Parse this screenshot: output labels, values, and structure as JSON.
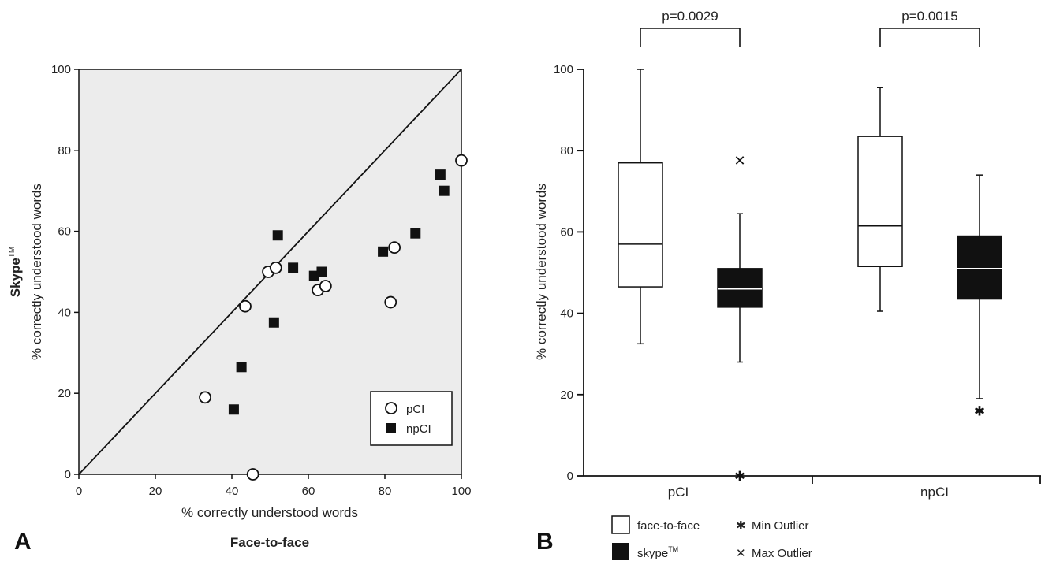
{
  "chart_data": [
    {
      "panel": "A",
      "type": "scatter",
      "xlabel": "% correctly understood words",
      "xlabel_bold": "Face-to-face",
      "ylabel": "% correctly understood words",
      "ylabel_bold": "Skype",
      "ylabel_bold_sup": "TM",
      "xlim": [
        0,
        100
      ],
      "ylim": [
        0,
        100
      ],
      "xticks": [
        "0",
        "20",
        "40",
        "60",
        "80",
        "100"
      ],
      "yticks": [
        "0",
        "20",
        "40",
        "60",
        "80",
        "100"
      ],
      "identity_line": true,
      "legend_position": "bottom-right",
      "series": [
        {
          "name": "pCI",
          "marker": "open-circle",
          "points": [
            [
              33,
              19
            ],
            [
              43.5,
              41.5
            ],
            [
              45.5,
              0
            ],
            [
              49.5,
              50
            ],
            [
              51.5,
              51
            ],
            [
              62.5,
              45.5
            ],
            [
              64.5,
              46.5
            ],
            [
              81.5,
              42.5
            ],
            [
              82.5,
              56
            ],
            [
              100,
              77.5
            ]
          ]
        },
        {
          "name": "npCI",
          "marker": "filled-square",
          "points": [
            [
              40.5,
              16
            ],
            [
              42.5,
              26.5
            ],
            [
              51,
              37.5
            ],
            [
              52,
              59
            ],
            [
              56,
              51
            ],
            [
              61.5,
              49
            ],
            [
              63.5,
              50
            ],
            [
              79.5,
              55
            ],
            [
              88,
              59.5
            ],
            [
              94.5,
              74
            ],
            [
              95.5,
              70
            ]
          ]
        }
      ]
    },
    {
      "panel": "B",
      "type": "box",
      "ylabel": "% correctly understood words",
      "ylim": [
        0,
        100
      ],
      "yticks": [
        "0",
        "20",
        "40",
        "60",
        "80",
        "100"
      ],
      "categories": [
        "pCI",
        "npCI"
      ],
      "series": [
        {
          "name": "face-to-face",
          "fill": "#ffffff",
          "boxes": [
            {
              "category": "pCI",
              "min": 32.5,
              "q1": 46.5,
              "median": 57,
              "q3": 77,
              "max": 100,
              "outliers_min": [],
              "outliers_max": []
            },
            {
              "category": "npCI",
              "min": 40.5,
              "q1": 51.5,
              "median": 61.5,
              "q3": 83.5,
              "max": 95.5,
              "outliers_min": [],
              "outliers_max": []
            }
          ]
        },
        {
          "name": "skype",
          "name_sup": "TM",
          "fill": "#111111",
          "boxes": [
            {
              "category": "pCI",
              "min": 28,
              "q1": 41.5,
              "median": 46,
              "q3": 51,
              "max": 64.5,
              "outliers_min": [
                0
              ],
              "outliers_max": [
                77.5
              ]
            },
            {
              "category": "npCI",
              "min": 19,
              "q1": 43.5,
              "median": 51,
              "q3": 59,
              "max": 74,
              "outliers_min": [
                16
              ],
              "outliers_max": []
            }
          ]
        }
      ],
      "significance": [
        {
          "category": "pCI",
          "label": "p=0.0029"
        },
        {
          "category": "npCI",
          "label": "p=0.0015"
        }
      ],
      "legend": {
        "items": [
          "face-to-face",
          "skype"
        ],
        "skype_sup": "TM",
        "min_outlier": "Min Outlier",
        "max_outlier": "Max Outlier",
        "min_outlier_symbol": "✱",
        "max_outlier_symbol": "✕"
      }
    }
  ]
}
